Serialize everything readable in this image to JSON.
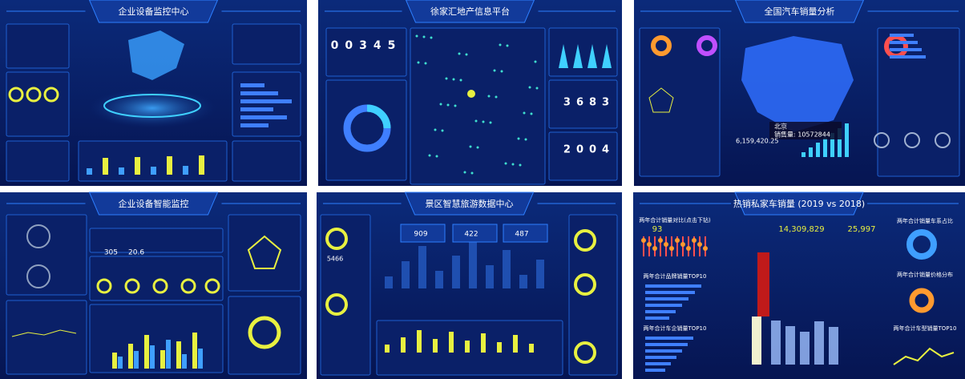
{
  "panels": [
    {
      "title": "企业设备监控中心"
    },
    {
      "title": "徐家汇地产信息平台",
      "counters": [
        "00345",
        "3683",
        "2004"
      ]
    },
    {
      "title": "全国汽车销量分析",
      "tooltip": {
        "city": "北京",
        "sales": "销售量: 10572844"
      },
      "value": "6,159,420.25"
    },
    {
      "title": "企业设备智能监控",
      "stats": [
        "305",
        "20.6"
      ]
    },
    {
      "title": "景区智慧旅游数据中心",
      "stats": [
        "909",
        "422",
        "487"
      ],
      "total": "5466"
    },
    {
      "title": "热销私家车销量 (2019 vs 2018)",
      "stats": [
        "93",
        "14,309,829",
        "25,997"
      ],
      "sections": [
        "两年合计销量对比(点击下钻)",
        "两年合计品牌销量TOP10",
        "两年合计车企销量TOP10",
        "两年合计销量车系占比",
        "两年合计销量价格分布",
        "两年合计车型销量TOP10"
      ]
    }
  ]
}
